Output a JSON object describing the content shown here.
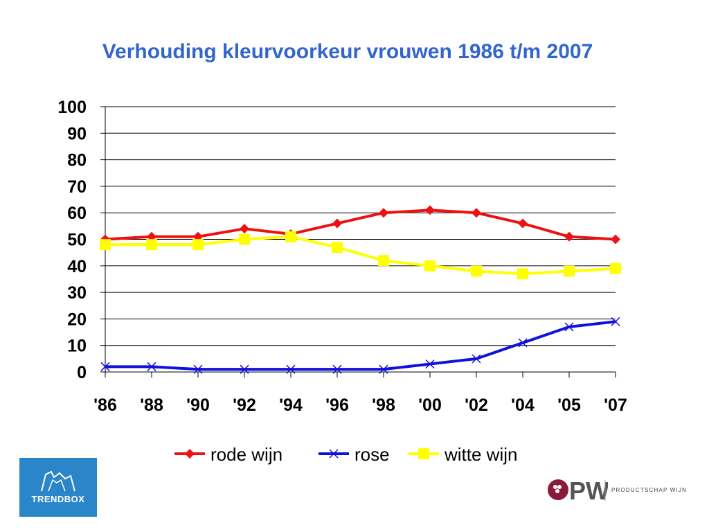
{
  "chart_data": {
    "type": "line",
    "title": "Verhouding kleurvoorkeur vrouwen 1986 t/m 2007",
    "categories": [
      "'86",
      "'88",
      "'90",
      "'92",
      "'94",
      "'96",
      "'98",
      "'00",
      "'02",
      "'04",
      "'05",
      "'07"
    ],
    "ylim": [
      0,
      100
    ],
    "yticks": [
      0,
      10,
      20,
      30,
      40,
      50,
      60,
      70,
      80,
      90,
      100
    ],
    "grid": true,
    "legend_position": "bottom",
    "series": [
      {
        "name": "rode wijn",
        "color": "#ee1111",
        "marker": "diamond",
        "values": [
          50,
          51,
          51,
          54,
          52,
          56,
          60,
          61,
          60,
          56,
          51,
          50
        ]
      },
      {
        "name": "rose",
        "color": "#1111dd",
        "marker": "x",
        "values": [
          2,
          2,
          1,
          1,
          1,
          1,
          1,
          3,
          5,
          11,
          17,
          19
        ]
      },
      {
        "name": "witte wijn",
        "color": "#ffff00",
        "marker": "square",
        "values": [
          48,
          48,
          48,
          50,
          51,
          47,
          42,
          40,
          38,
          37,
          38,
          39
        ]
      }
    ]
  },
  "logos": {
    "left_text": "TRENDBOX",
    "right_text": "PRODUCTSCHAP WIJN",
    "right_mark": "PW"
  }
}
